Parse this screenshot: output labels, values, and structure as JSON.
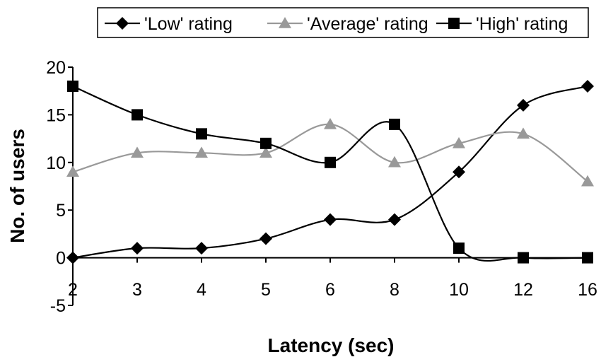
{
  "chart_data": {
    "type": "line",
    "categories": [
      "2",
      "3",
      "4",
      "5",
      "6",
      "8",
      "10",
      "12",
      "16"
    ],
    "series": [
      {
        "name": "'Low' rating",
        "values": [
          0,
          1,
          1,
          2,
          4,
          4,
          9,
          16,
          18
        ],
        "color": "#000000",
        "marker": "diamond"
      },
      {
        "name": "'Average' rating",
        "values": [
          9,
          11,
          11,
          11,
          14,
          10,
          12,
          13,
          8
        ],
        "color": "#999999",
        "marker": "triangle"
      },
      {
        "name": "'High' rating",
        "values": [
          18,
          15,
          13,
          12,
          10,
          14,
          1,
          0,
          0
        ],
        "color": "#000000",
        "marker": "square"
      }
    ],
    "xlabel": "Latency (sec)",
    "ylabel": "No. of users",
    "ylim": [
      -5,
      20
    ],
    "yticks": [
      "-5",
      "0",
      "5",
      "10",
      "15",
      "20"
    ],
    "grid": false,
    "smooth": true,
    "legend_position": "top"
  }
}
